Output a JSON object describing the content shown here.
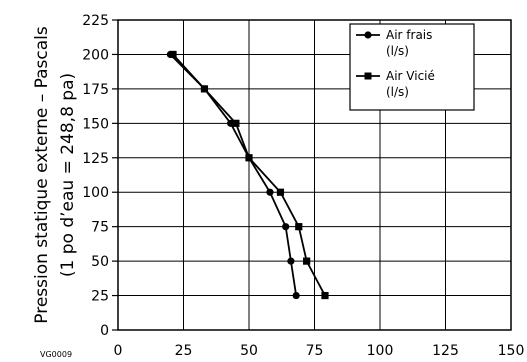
{
  "chart_data": {
    "type": "line",
    "ylabel_line1": "Pression statique externe – Pascals",
    "ylabel_line2": "(1 po d’eau = 248,8 pa)",
    "xlim": [
      0,
      150
    ],
    "ylim": [
      0,
      225
    ],
    "xticks": [
      "0",
      "25",
      "50",
      "75",
      "100",
      "125",
      "150"
    ],
    "yticks": [
      "0",
      "25",
      "50",
      "75",
      "100",
      "125",
      "150",
      "175",
      "200",
      "225"
    ],
    "grid": true,
    "legend_position": "top-right",
    "series": [
      {
        "name_line1": "Air frais",
        "name_line2": "(l/s)",
        "marker": "circle",
        "color": "#000000",
        "points": [
          [
            20,
            200
          ],
          [
            33,
            175
          ],
          [
            43,
            150
          ],
          [
            50,
            125
          ],
          [
            58,
            100
          ],
          [
            64,
            75
          ],
          [
            66,
            50
          ],
          [
            68,
            25
          ]
        ]
      },
      {
        "name_line1": "Air Vicié",
        "name_line2": "(l/s)",
        "marker": "square",
        "color": "#000000",
        "points": [
          [
            21,
            200
          ],
          [
            33,
            175
          ],
          [
            45,
            150
          ],
          [
            50,
            125
          ],
          [
            62,
            100
          ],
          [
            69,
            75
          ],
          [
            72,
            50
          ],
          [
            79,
            25
          ]
        ]
      }
    ]
  },
  "figure_code": "VG0009"
}
